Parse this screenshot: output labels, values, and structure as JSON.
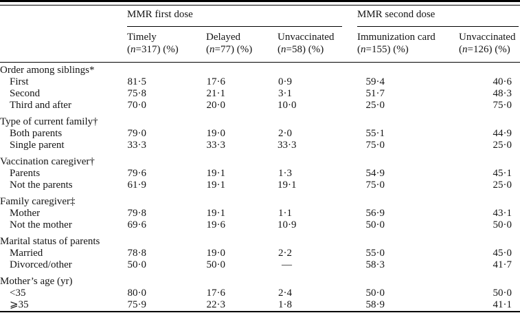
{
  "page": {
    "background": "#ffffff",
    "text_color": "#141414",
    "rule_color": "#000000"
  },
  "table": {
    "col_groups": [
      {
        "label": "MMR first dose"
      },
      {
        "label": "MMR second dose"
      }
    ],
    "columns": [
      {
        "group": 0,
        "title": "Timely",
        "sub": "(n=317) (%)"
      },
      {
        "group": 0,
        "title": "Delayed",
        "sub": "(n=77) (%)"
      },
      {
        "group": 0,
        "title": "Unvaccinated",
        "sub": "(n=58) (%)"
      },
      {
        "group": 1,
        "title": "Immunization card",
        "sub": "(n=155) (%)"
      },
      {
        "group": 1,
        "title": "Unvaccinated",
        "sub": "(n=126) (%)"
      }
    ],
    "sections": [
      {
        "header": "Order among siblings*",
        "rows": [
          {
            "label": "First",
            "values": [
              "81·5",
              "17·6",
              "0·9",
              "59·4",
              "40·6"
            ]
          },
          {
            "label": "Second",
            "values": [
              "75·8",
              "21·1",
              "3·1",
              "51·7",
              "48·3"
            ]
          },
          {
            "label": "Third and after",
            "values": [
              "70·0",
              "20·0",
              "10·0",
              "25·0",
              "75·0"
            ]
          }
        ]
      },
      {
        "header": "Type of current family†",
        "rows": [
          {
            "label": "Both parents",
            "values": [
              "79·0",
              "19·0",
              "2·0",
              "55·1",
              "44·9"
            ]
          },
          {
            "label": "Single parent",
            "values": [
              "33·3",
              "33·3",
              "33·3",
              "75·0",
              "25·0"
            ]
          }
        ]
      },
      {
        "header": "Vaccination caregiver†",
        "rows": [
          {
            "label": "Parents",
            "values": [
              "79·6",
              "19·1",
              "1·3",
              "54·9",
              "45·1"
            ]
          },
          {
            "label": "Not the parents",
            "values": [
              "61·9",
              "19·1",
              "19·1",
              "75·0",
              "25·0"
            ]
          }
        ]
      },
      {
        "header": "Family caregiver‡",
        "rows": [
          {
            "label": "Mother",
            "values": [
              "79·8",
              "19·1",
              "1·1",
              "56·9",
              "43·1"
            ]
          },
          {
            "label": "Not the mother",
            "values": [
              "69·6",
              "19·6",
              "10·9",
              "50·0",
              "50·0"
            ]
          }
        ]
      },
      {
        "header": "Marital status of parents",
        "rows": [
          {
            "label": "Married",
            "values": [
              "78·8",
              "19·0",
              "2·2",
              "55·0",
              "45·0"
            ]
          },
          {
            "label": "Divorced/other",
            "values": [
              "50·0",
              "50·0",
              "—",
              "58·3",
              "41·7"
            ]
          }
        ]
      },
      {
        "header": "Mother’s age (yr)",
        "rows": [
          {
            "label": "<35",
            "values": [
              "80·0",
              "17·6",
              "2·4",
              "50·0",
              "50·0"
            ]
          },
          {
            "label": "⩾35",
            "values": [
              "75·9",
              "22·3",
              "1·8",
              "58·9",
              "41·1"
            ]
          }
        ]
      }
    ]
  }
}
